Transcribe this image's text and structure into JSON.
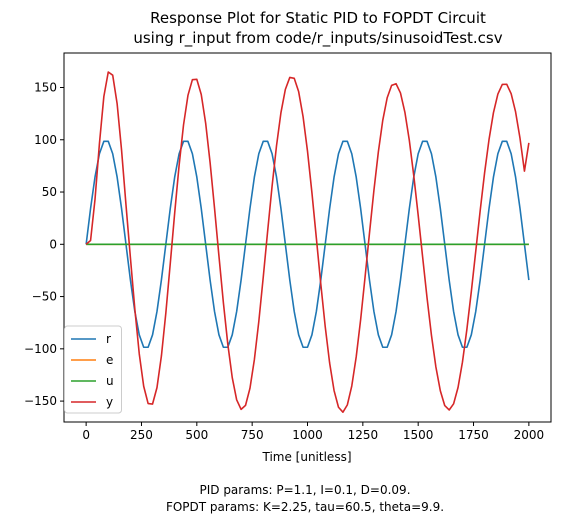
{
  "chart_data": {
    "type": "line",
    "title_line1": "Response Plot for Static PID to FOPDT Circuit",
    "title_line2": "using r_input from code/r_inputs/sinusoidTest.csv",
    "xlabel": "Time [unitless]",
    "ylabel": "",
    "xlim": [
      -100,
      2100
    ],
    "ylim": [
      -170,
      183
    ],
    "xticks": [
      0,
      250,
      500,
      750,
      1000,
      1250,
      1500,
      1750,
      2000
    ],
    "xtick_labels": [
      "0",
      "250",
      "500",
      "750",
      "1000",
      "1250",
      "1500",
      "1750",
      "2000"
    ],
    "yticks": [
      -150,
      -100,
      -50,
      0,
      50,
      100,
      150
    ],
    "ytick_labels": [
      "−150",
      "−100",
      "−50",
      "0",
      "50",
      "100",
      "150"
    ],
    "grid": false,
    "legend_position": "lower-left",
    "x": [
      0,
      20,
      40,
      60,
      80,
      100,
      120,
      140,
      160,
      180,
      200,
      220,
      240,
      260,
      280,
      300,
      320,
      340,
      360,
      380,
      400,
      420,
      440,
      460,
      480,
      500,
      520,
      540,
      560,
      580,
      600,
      620,
      640,
      660,
      680,
      700,
      720,
      740,
      760,
      780,
      800,
      820,
      840,
      860,
      880,
      900,
      920,
      940,
      960,
      980,
      1000,
      1020,
      1040,
      1060,
      1080,
      1100,
      1120,
      1140,
      1160,
      1180,
      1200,
      1220,
      1240,
      1260,
      1280,
      1300,
      1320,
      1340,
      1360,
      1380,
      1400,
      1420,
      1440,
      1460,
      1480,
      1500,
      1520,
      1540,
      1560,
      1580,
      1600,
      1620,
      1640,
      1660,
      1680,
      1700,
      1720,
      1740,
      1760,
      1780,
      1800,
      1820,
      1840,
      1860,
      1880,
      1900,
      1920,
      1940,
      1960,
      1980,
      2000
    ],
    "series": [
      {
        "name": "r",
        "color": "#1f77b4",
        "values": [
          0,
          34.2,
          64.3,
          86.6,
          98.5,
          98.5,
          86.6,
          64.3,
          34.2,
          0,
          -34.2,
          -64.3,
          -86.6,
          -98.5,
          -98.5,
          -86.6,
          -64.3,
          -34.2,
          0,
          34.2,
          64.3,
          86.6,
          98.5,
          98.5,
          86.6,
          64.3,
          34.2,
          0,
          -34.2,
          -64.3,
          -86.6,
          -98.5,
          -98.5,
          -86.6,
          -64.3,
          -34.2,
          0,
          34.2,
          64.3,
          86.6,
          98.5,
          98.5,
          86.6,
          64.3,
          34.2,
          0,
          -34.2,
          -64.3,
          -86.6,
          -98.5,
          -98.5,
          -86.6,
          -64.3,
          -34.2,
          0,
          34.2,
          64.3,
          86.6,
          98.5,
          98.5,
          86.6,
          64.3,
          34.2,
          0,
          -34.2,
          -64.3,
          -86.6,
          -98.5,
          -98.5,
          -86.6,
          -64.3,
          -34.2,
          0,
          34.2,
          64.3,
          86.6,
          98.5,
          98.5,
          86.6,
          64.3,
          34.2,
          0,
          -34.2,
          -64.3,
          -86.6,
          -98.5,
          -98.5,
          -86.6,
          -64.3,
          -34.2,
          0,
          34.2,
          64.3,
          86.6,
          98.5,
          98.5,
          86.6,
          64.3,
          34.2,
          0,
          -34.2
        ]
      },
      {
        "name": "e",
        "color": "#ff7f0e",
        "values": [
          0,
          0,
          0,
          0,
          0,
          0,
          0,
          0,
          0,
          0,
          0,
          0,
          0,
          0,
          0,
          0,
          0,
          0,
          0,
          0,
          0,
          0,
          0,
          0,
          0,
          0,
          0,
          0,
          0,
          0,
          0,
          0,
          0,
          0,
          0,
          0,
          0,
          0,
          0,
          0,
          0,
          0,
          0,
          0,
          0,
          0,
          0,
          0,
          0,
          0,
          0,
          0,
          0,
          0,
          0,
          0,
          0,
          0,
          0,
          0,
          0,
          0,
          0,
          0,
          0,
          0,
          0,
          0,
          0,
          0,
          0,
          0,
          0,
          0,
          0,
          0,
          0,
          0,
          0,
          0,
          0,
          0,
          0,
          0,
          0,
          0,
          0,
          0,
          0,
          0,
          0,
          0,
          0,
          0,
          0,
          0,
          0,
          0,
          0,
          0,
          0
        ]
      },
      {
        "name": "u",
        "color": "#2ca02c",
        "values": [
          0,
          0,
          0,
          0,
          0,
          0,
          0,
          0,
          0,
          0,
          0,
          0,
          0,
          0,
          0,
          0,
          0,
          0,
          0,
          0,
          0,
          0,
          0,
          0,
          0,
          0,
          0,
          0,
          0,
          0,
          0,
          0,
          0,
          0,
          0,
          0,
          0,
          0,
          0,
          0,
          0,
          0,
          0,
          0,
          0,
          0,
          0,
          0,
          0,
          0,
          0,
          0,
          0,
          0,
          0,
          0,
          0,
          0,
          0,
          0,
          0,
          0,
          0,
          0,
          0,
          0,
          0,
          0,
          0,
          0,
          0,
          0,
          0,
          0,
          0,
          0,
          0,
          0,
          0,
          0,
          0,
          0,
          0,
          0,
          0,
          0,
          0,
          0,
          0,
          0,
          0,
          0,
          0,
          0,
          0,
          0,
          0,
          0,
          0,
          0,
          0
        ]
      },
      {
        "name": "y",
        "color": "#d62728",
        "values": [
          0,
          3.6,
          42.8,
          96.3,
          141.4,
          164.8,
          161.8,
          134.5,
          90.2,
          37.8,
          -12.8,
          -62.1,
          -104.8,
          -135.8,
          -152.4,
          -152.8,
          -137.1,
          -106.9,
          -65.8,
          -18.6,
          29.9,
          75.6,
          114.3,
          142.5,
          157.5,
          157.8,
          143.3,
          115.8,
          78.1,
          34.5,
          -11.3,
          -55.9,
          -95.6,
          -127.5,
          -148.8,
          -157.9,
          -154.1,
          -137.8,
          -110.3,
          -73.9,
          -31.6,
          12.7,
          55.6,
          94.2,
          125.9,
          148.2,
          159.6,
          158.8,
          146.0,
          122.1,
          89.1,
          49.3,
          5.9,
          -37.8,
          -78.7,
          -113.6,
          -139.9,
          -155.9,
          -160.6,
          -153.6,
          -135.6,
          -107.7,
          -72.1,
          -31.5,
          10.7,
          51.5,
          88.3,
          118.6,
          140.2,
          152.0,
          153.6,
          144.8,
          126.3,
          99.4,
          65.8,
          27.8,
          -12.0,
          -51.2,
          -87.1,
          -117.4,
          -140.1,
          -154.3,
          -158.5,
          -152.6,
          -137.0,
          -112.7,
          -81.4,
          -45.3,
          -6.7,
          32.0,
          68.3,
          100.2,
          125.9,
          143.7,
          152.9,
          153.1,
          144.1,
          126.7,
          101.4,
          70.0,
          97.0
        ]
      }
    ],
    "caption_line1": "PID params: P=1.1, I=0.1, D=0.09.",
    "caption_line2": "FOPDT params: K=2.25, tau=60.5, theta=9.9."
  }
}
